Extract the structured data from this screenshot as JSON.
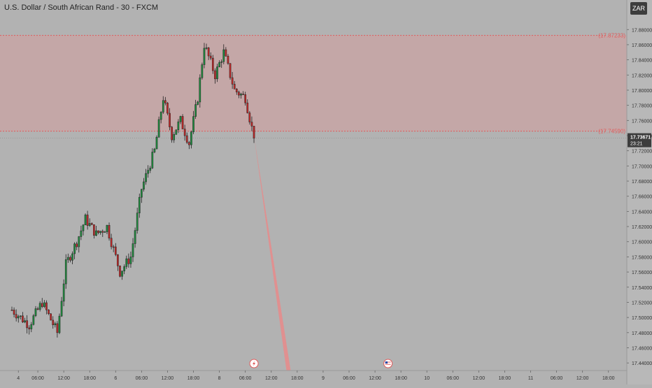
{
  "header": {
    "title": "U.S. Dollar / South African Rand - 30 - FXCM",
    "currency": "ZAR"
  },
  "colors": {
    "background": "#b2b2b2",
    "zone_fill": "#c9a3a3",
    "zone_line": "#e05b5b",
    "up_candle": "#1e8e3e",
    "down_candle": "#c62828",
    "wick": "#222222",
    "projection": "#e88a8a",
    "price_badge": "#3d3d3d"
  },
  "chart_data": {
    "type": "candlestick",
    "symbol": "USDZAR",
    "timeframe": "30",
    "y_axis": {
      "min": 17.43,
      "max": 17.895,
      "ticks": [
        17.88,
        17.86,
        17.84,
        17.82,
        17.8,
        17.78,
        17.76,
        17.74,
        17.72,
        17.7,
        17.68,
        17.66,
        17.64,
        17.62,
        17.6,
        17.58,
        17.56,
        17.54,
        17.52,
        17.5,
        17.48,
        17.46,
        17.44
      ],
      "tick_labels": [
        "17.88000",
        "17.86000",
        "17.84000",
        "17.82000",
        "17.80000",
        "17.78000",
        "17.76000",
        "17.74000",
        "17.72000",
        "17.70000",
        "17.68000",
        "17.66000",
        "17.64000",
        "17.62000",
        "17.60000",
        "17.58000",
        "17.56000",
        "17.54000",
        "17.52000",
        "17.50000",
        "17.48000",
        "17.46000",
        "17.44000"
      ]
    },
    "x_axis": {
      "tick_labels": [
        "4",
        "06:00",
        "12:00",
        "18:00",
        "6",
        "06:00",
        "12:00",
        "18:00",
        "8",
        "06:00",
        "12:00",
        "18:00",
        "9",
        "06:00",
        "12:00",
        "18:00",
        "10",
        "06:00",
        "12:00",
        "18:00",
        "11",
        "06:00",
        "12:00",
        "18:00"
      ],
      "tick_bars": [
        3,
        12,
        24,
        36,
        48,
        60,
        72,
        84,
        96,
        108,
        120,
        132,
        144,
        156,
        168,
        180,
        192,
        204,
        216,
        228,
        240,
        252,
        264,
        276
      ],
      "bars_shown": 290,
      "start_bar": -5
    },
    "zone": {
      "top": 17.87233,
      "bottom": 17.7459,
      "top_label": "(17.87233)",
      "bottom_label": "(17.74590)"
    },
    "current_price": {
      "value": 17.73671,
      "label": "17.73671",
      "countdown": "23:21"
    },
    "projection": {
      "from_bar": 112,
      "from_price": 17.74,
      "to_bar": 128,
      "to_price": 17.43
    },
    "event_markers": [
      {
        "bar": 112,
        "kind": "lightning"
      },
      {
        "bar": 174,
        "kind": "us-flag"
      }
    ],
    "close_path": [
      {
        "bar": 0,
        "price": 17.51
      },
      {
        "bar": 8,
        "price": 17.49
      },
      {
        "bar": 14,
        "price": 17.52
      },
      {
        "bar": 21,
        "price": 17.48
      },
      {
        "bar": 25,
        "price": 17.57
      },
      {
        "bar": 30,
        "price": 17.6
      },
      {
        "bar": 34,
        "price": 17.63
      },
      {
        "bar": 39,
        "price": 17.61
      },
      {
        "bar": 44,
        "price": 17.62
      },
      {
        "bar": 50,
        "price": 17.56
      },
      {
        "bar": 55,
        "price": 17.58
      },
      {
        "bar": 60,
        "price": 17.67
      },
      {
        "bar": 66,
        "price": 17.72
      },
      {
        "bar": 70,
        "price": 17.79
      },
      {
        "bar": 74,
        "price": 17.74
      },
      {
        "bar": 78,
        "price": 17.76
      },
      {
        "bar": 82,
        "price": 17.73
      },
      {
        "bar": 86,
        "price": 17.79
      },
      {
        "bar": 89,
        "price": 17.86
      },
      {
        "bar": 94,
        "price": 17.82
      },
      {
        "bar": 98,
        "price": 17.85
      },
      {
        "bar": 103,
        "price": 17.8
      },
      {
        "bar": 108,
        "price": 17.79
      },
      {
        "bar": 112,
        "price": 17.737
      }
    ],
    "volatility": 0.0085,
    "seed": 7
  }
}
